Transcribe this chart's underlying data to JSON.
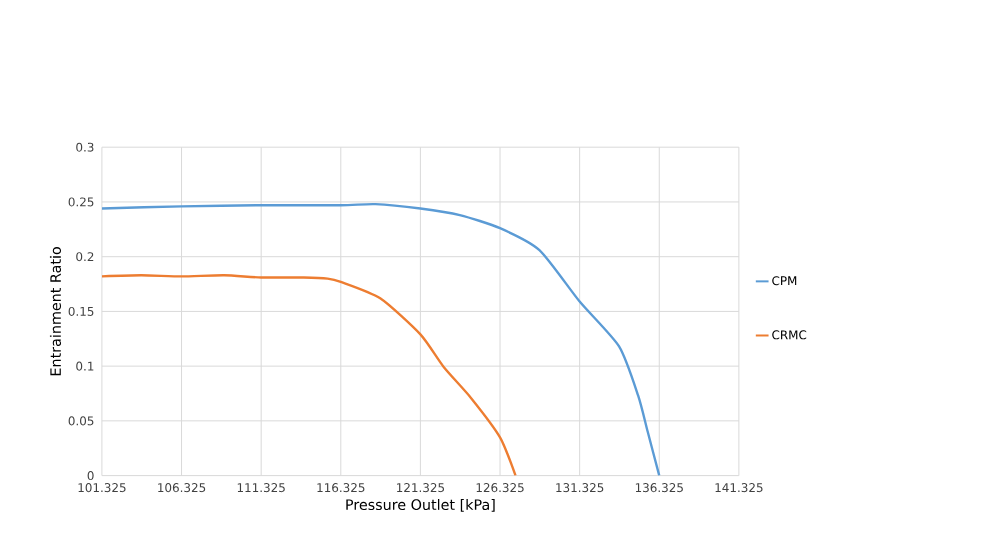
{
  "chart_data": {
    "type": "line",
    "xlabel": "Pressure Outlet [kPa]",
    "ylabel": "Entrainment Ratio",
    "xlim": [
      101.325,
      141.325
    ],
    "xticks": [
      101.325,
      106.325,
      111.325,
      116.325,
      121.325,
      126.325,
      131.325,
      136.325,
      141.325
    ],
    "ylim": [
      0,
      0.3
    ],
    "yticks": [
      0,
      0.05,
      0.1,
      0.15,
      0.2,
      0.25,
      0.3
    ],
    "grid": true,
    "legend": "right",
    "series": [
      {
        "name": "CPM",
        "color": "#5b9bd5",
        "x": [
          101.325,
          106.325,
          111.325,
          116.325,
          118.5,
          121.325,
          123.8,
          126.325,
          128.8,
          131.325,
          133.8,
          135.0,
          135.6,
          136.325
        ],
        "values": [
          0.244,
          0.246,
          0.247,
          0.247,
          0.248,
          0.244,
          0.238,
          0.226,
          0.206,
          0.159,
          0.118,
          0.073,
          0.04,
          0
        ]
      },
      {
        "name": "CRMC",
        "color": "#ed7d31",
        "x": [
          101.325,
          103.8,
          106.325,
          109.0,
          111.325,
          114.0,
          115.5,
          116.325,
          118.8,
          121.325,
          122.8,
          124.5,
          126.325,
          127.3
        ],
        "values": [
          0.182,
          0.183,
          0.182,
          0.183,
          0.181,
          0.181,
          0.18,
          0.177,
          0.162,
          0.129,
          0.099,
          0.071,
          0.035,
          0
        ]
      }
    ]
  }
}
